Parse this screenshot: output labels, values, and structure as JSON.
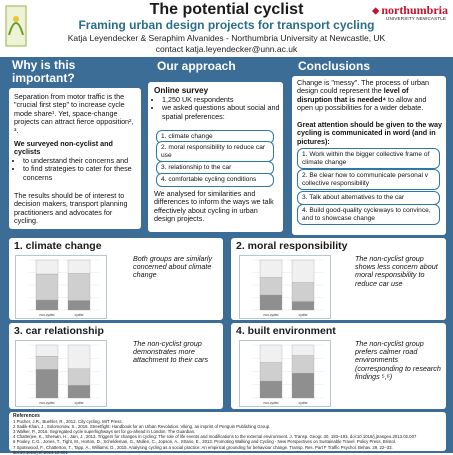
{
  "header": {
    "title": "The potential cyclist",
    "subtitle": "Framing urban design projects for transport cycling",
    "authors": "Katja Leyendecker & Seraphim Alvanides - Northumbria University at Newcastle, UK",
    "contact": "contact katja.leyendecker@unn.ac.uk",
    "logo_name": "northumbria",
    "logo_sub": "UNIVERSITY NEWCASTLE"
  },
  "why": {
    "heading": "Why is this important?",
    "p1": "Separation from motor traffic is the \"crucial first step\" to increase cycle mode share¹. Yet, space-change projects can attract fierce opposition², ³.",
    "p2_lead": "We surveyed non-cyclist and cyclists",
    "p2_items": [
      "to understand their concerns and",
      "to find strategies to cater for these concerns"
    ],
    "p3": "The results should be of interest to decision makers, transport planning practitioners and advocates for cycling."
  },
  "approach": {
    "heading": "Our approach",
    "survey_title": "Online survey",
    "survey_items": [
      "1,250 UK respondents",
      "we asked questions about social and spatial preferences:"
    ],
    "pills": [
      "1. climate change",
      "2. moral responsibility to reduce car use",
      "3. relationship to the car",
      "4. comfortable cycling conditions"
    ],
    "analysis": "We analysed for similarities and differences to inform the ways we talk effectively about cycling in urban design projects."
  },
  "conclusions": {
    "heading": "Conclusions",
    "p1_a": "Change is \"messy\". The process of urban design could represent the ",
    "p1_b": "level of disruption that is needed⁴",
    "p1_c": " to allow and open up possibilities for a wider debate.",
    "p2": "Great attention should be given to the way cycling is communicated in word (and in pictures):",
    "pills": [
      "1. Work within the bigger collective frame of climate change",
      "2. Be clear how to communicate personal v collective responsibility",
      "3. Talk about alternatives to the car",
      "4. Build good-quality cycleways to convince, and to showcase change"
    ]
  },
  "findings": [
    {
      "heading": "1. climate change",
      "text": "Both groups are similarly concerned about climate change"
    },
    {
      "heading": "2. moral responsibility",
      "text": "The non-cyclist group shows less concern about moral responsibility to reduce car use"
    },
    {
      "heading": "3. car relationship",
      "text": "The non-cyclist group demonstrates more attachment to their cars"
    },
    {
      "heading": "4. built environment",
      "text": "The non-cyclist group prefers calmer road environments (corresponding to research findings ⁵,⁶)"
    }
  ],
  "colors": {
    "band": "#3b6d96",
    "accent": "#2a6f8a",
    "pill_border": "#2e78a8",
    "brand": "#c8102e"
  },
  "chart_data": [
    {
      "type": "bar",
      "stacked": true,
      "categories": [
        "non-cyclist",
        "cyclist"
      ],
      "series": [
        {
          "values": [
            20,
            19
          ]
        },
        {
          "values": [
            52,
            54
          ]
        },
        {
          "values": [
            28,
            27
          ]
        }
      ],
      "ylim": [
        0,
        100
      ]
    },
    {
      "type": "bar",
      "stacked": true,
      "categories": [
        "non-cyclist",
        "cyclist"
      ],
      "series": [
        {
          "values": [
            30,
            17
          ]
        },
        {
          "values": [
            35,
            38
          ]
        },
        {
          "values": [
            35,
            45
          ]
        }
      ],
      "ylim": [
        0,
        100
      ]
    },
    {
      "type": "bar",
      "stacked": true,
      "categories": [
        "non-cyclist",
        "cyclist"
      ],
      "series": [
        {
          "values": [
            54,
            24
          ]
        },
        {
          "values": [
            25,
            31
          ]
        },
        {
          "values": [
            21,
            45
          ]
        }
      ],
      "ylim": [
        0,
        100
      ]
    },
    {
      "type": "bar",
      "stacked": true,
      "categories": [
        "non-cyclist",
        "cyclist"
      ],
      "series": [
        {
          "values": [
            32,
            47
          ]
        },
        {
          "values": [
            35,
            33
          ]
        },
        {
          "values": [
            33,
            20
          ]
        }
      ],
      "ylim": [
        0,
        100
      ]
    }
  ],
  "references": {
    "heading": "References",
    "items": [
      "1 Pucher, J.R., Buehler, R., 2012. City cycling. MIT Press.",
      "2 Sadik-Khan, J., Solomonow, S., 2016. Streetfight: Handbook for an Urban Revolution. Viking, an imprint of Penguin Publishing Group.",
      "3 Walker, P., 2016. Segregated cycle superhighways set for go-ahead in London. The Guardian.",
      "4 Chatterjee, K., Sherwin, H., Jain, J., 2013. Triggers for changes in cycling: The role of life events and modifications to the external environment. J. Transp. Geogr. 30, 183–193. doi:10.1016/j.jtrangeo.2013.02.007",
      "5 Aldred, R., Elliott, B., Woodcock, J., Goodman, A., 2017. Cycling provision separated from motor traffic: a systematic review exploring whether stated preferences vary by gender and age. Transport Reviews.",
      "6 Pooley, C.G., Jones, T., Tight, M., Horton, D., Scheldeman, G., Mullen, C., Jopson, A., Strano, E., 2013. Promoting Walking and Cycling - New Perspectives on Sustainable Travel. Policy Press, Bristol.",
      "7 Spotswood, F., Chatterton, T., Tapp, A., Williams, D., 2015. Analysing cycling as a social practice: An empirical grounding for behaviour change. Transp. Res. Part F Traffic Psychol. Behav. 29, 22–33. doi:10.1016/j.trf.2014.12.001"
    ]
  }
}
